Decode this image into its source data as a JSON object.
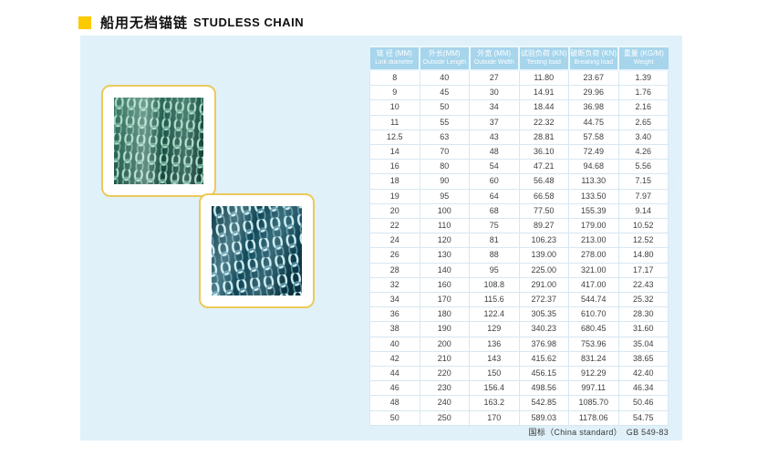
{
  "page": {
    "title_zh": "船用无档锚链",
    "title_en": "STUDLESS CHAIN"
  },
  "colors": {
    "accent_yellow": "#fdc900",
    "panel_blue": "#e0f1fa",
    "table_header_blue": "#a6d5ec",
    "card_border_yellow": "#ecc95a"
  },
  "images": {
    "photo1_label": "studless-chain-photo",
    "photo2_label": "studless-chain-photo"
  },
  "table": {
    "headers": [
      {
        "zh": "链 径 (MM)",
        "en": "Link diameter"
      },
      {
        "zh": "外长(MM)",
        "en": "Outside Length"
      },
      {
        "zh": "外宽 (MM)",
        "en": "Outside Width"
      },
      {
        "zh": "试验负荷 (KN)",
        "en": "Testing load"
      },
      {
        "zh": "破断负荷 (KN)",
        "en": "Breaking load"
      },
      {
        "zh": "重量 (KG/M)",
        "en": "Weight"
      }
    ],
    "rows": [
      [
        "8",
        "40",
        "27",
        "11.80",
        "23.67",
        "1.39"
      ],
      [
        "9",
        "45",
        "30",
        "14.91",
        "29.96",
        "1.76"
      ],
      [
        "10",
        "50",
        "34",
        "18.44",
        "36.98",
        "2.16"
      ],
      [
        "11",
        "55",
        "37",
        "22.32",
        "44.75",
        "2.65"
      ],
      [
        "12.5",
        "63",
        "43",
        "28.81",
        "57.58",
        "3.40"
      ],
      [
        "14",
        "70",
        "48",
        "36.10",
        "72.49",
        "4.26"
      ],
      [
        "16",
        "80",
        "54",
        "47.21",
        "94.68",
        "5.56"
      ],
      [
        "18",
        "90",
        "60",
        "56.48",
        "113.30",
        "7.15"
      ],
      [
        "19",
        "95",
        "64",
        "66.58",
        "133.50",
        "7.97"
      ],
      [
        "20",
        "100",
        "68",
        "77.50",
        "155.39",
        "9.14"
      ],
      [
        "22",
        "110",
        "75",
        "89.27",
        "179.00",
        "10.52"
      ],
      [
        "24",
        "120",
        "81",
        "106.23",
        "213.00",
        "12.52"
      ],
      [
        "26",
        "130",
        "88",
        "139.00",
        "278.00",
        "14.80"
      ],
      [
        "28",
        "140",
        "95",
        "225.00",
        "321.00",
        "17.17"
      ],
      [
        "32",
        "160",
        "108.8",
        "291.00",
        "417.00",
        "22.43"
      ],
      [
        "34",
        "170",
        "115.6",
        "272.37",
        "544.74",
        "25.32"
      ],
      [
        "36",
        "180",
        "122.4",
        "305.35",
        "610.70",
        "28.30"
      ],
      [
        "38",
        "190",
        "129",
        "340.23",
        "680.45",
        "31.60"
      ],
      [
        "40",
        "200",
        "136",
        "376.98",
        "753.96",
        "35.04"
      ],
      [
        "42",
        "210",
        "143",
        "415.62",
        "831.24",
        "38.65"
      ],
      [
        "44",
        "220",
        "150",
        "456.15",
        "912.29",
        "42.40"
      ],
      [
        "46",
        "230",
        "156.4",
        "498.56",
        "997.11",
        "46.34"
      ],
      [
        "48",
        "240",
        "163.2",
        "542.85",
        "1085.70",
        "50.46"
      ],
      [
        "50",
        "250",
        "170",
        "589.03",
        "1178.06",
        "54.75"
      ]
    ]
  },
  "footer": {
    "standard": "国标（China standard）　GB 549-83"
  }
}
